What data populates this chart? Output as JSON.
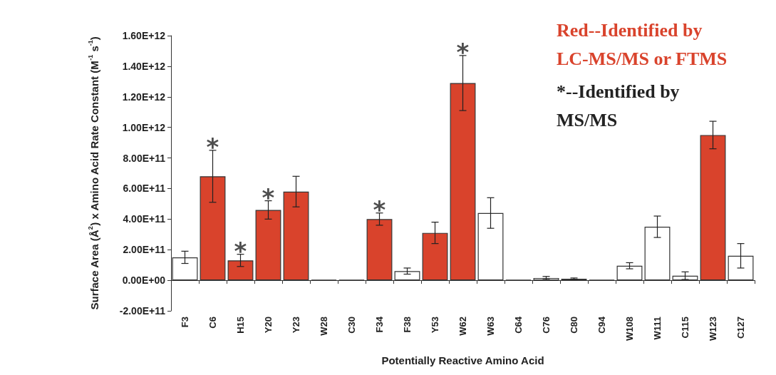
{
  "chart_data": {
    "type": "bar",
    "xlabel": "Potentially Reactive Amino Acid",
    "ylabel": "Surface Area (Å$^{2}$) x Amino Acid Rate Constant (M$^{-1}$ s$^{-1}$)",
    "categories": [
      "F3",
      "C6",
      "H15",
      "Y20",
      "Y23",
      "W28",
      "C30",
      "F34",
      "F38",
      "Y53",
      "W62",
      "W63",
      "C64",
      "C76",
      "C80",
      "C94",
      "W108",
      "W111",
      "C115",
      "W123",
      "C127"
    ],
    "values": [
      150000000000.0,
      680000000000.0,
      130000000000.0,
      460000000000.0,
      580000000000.0,
      3000000000.0,
      2000000000.0,
      400000000000.0,
      60000000000.0,
      310000000000.0,
      1290000000000.0,
      440000000000.0,
      2000000000.0,
      15000000000.0,
      10000000000.0,
      2000000000.0,
      95000000000.0,
      350000000000.0,
      30000000000.0,
      950000000000.0,
      160000000000.0
    ],
    "errors": [
      40000000000.0,
      170000000000.0,
      40000000000.0,
      60000000000.0,
      100000000000.0,
      null,
      null,
      40000000000.0,
      20000000000.0,
      70000000000.0,
      180000000000.0,
      100000000000.0,
      null,
      10000000000.0,
      5000000000.0,
      null,
      20000000000.0,
      70000000000.0,
      25000000000.0,
      90000000000.0,
      80000000000.0
    ],
    "colors": [
      "#ffffff",
      "#d9432c",
      "#d9432c",
      "#d9432c",
      "#d9432c",
      "#333333",
      "#333333",
      "#d9432c",
      "#ffffff",
      "#d9432c",
      "#d9432c",
      "#ffffff",
      "#333333",
      "#ffffff",
      "#ffffff",
      "#333333",
      "#ffffff",
      "#ffffff",
      "#ffffff",
      "#d9432c",
      "#ffffff"
    ],
    "ylim": [
      -200000000000.0,
      1600000000000.0
    ],
    "yticks": [
      {
        "value": -200000000000.0,
        "label": "-2.00E+11"
      },
      {
        "value": 0,
        "label": "0.00E+00"
      },
      {
        "value": 200000000000.0,
        "label": "2.00E+11"
      },
      {
        "value": 400000000000.0,
        "label": "4.00E+11"
      },
      {
        "value": 600000000000.0,
        "label": "6.00E+11"
      },
      {
        "value": 800000000000.0,
        "label": "8.00E+11"
      },
      {
        "value": 1000000000000.0,
        "label": "1.00E+12"
      },
      {
        "value": 1200000000000.0,
        "label": "1.20E+12"
      },
      {
        "value": 1400000000000.0,
        "label": "1.40E+12"
      },
      {
        "value": 1600000000000.0,
        "label": "1.60E+12"
      }
    ],
    "annotations": [
      "Red--Identified by LC-MS/MS or FTMS",
      "*--Identified by MS/MS",
      {
        "text": "*",
        "x": "C6",
        "y": 680000000000.0
      },
      {
        "text": "*",
        "x": "H15",
        "y": 130000000000.0
      },
      {
        "text": "*",
        "x": "Y20",
        "y": 460000000000.0
      },
      {
        "text": "*",
        "x": "F34",
        "y": 400000000000.0
      },
      {
        "text": "*",
        "x": "W62",
        "y": 1290000000000.0
      }
    ]
  }
}
